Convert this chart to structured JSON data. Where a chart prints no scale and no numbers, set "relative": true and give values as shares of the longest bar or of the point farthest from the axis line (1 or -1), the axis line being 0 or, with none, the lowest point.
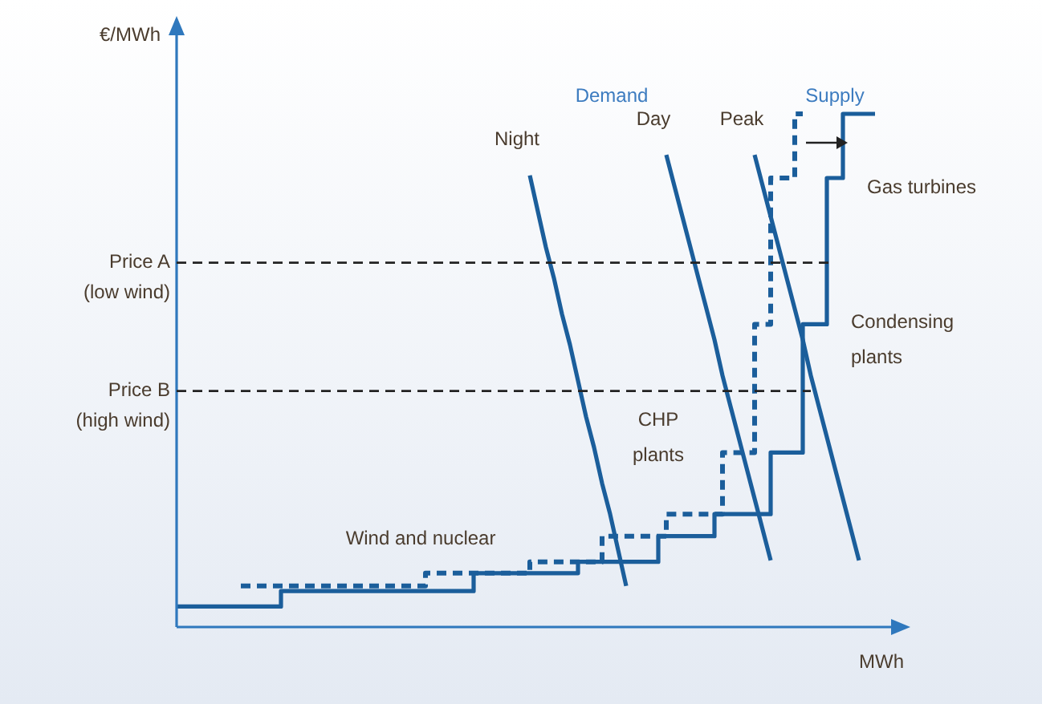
{
  "chart_data": {
    "type": "line",
    "relative": true,
    "xlabel": "MWh",
    "ylabel": "€/MWh",
    "legend": false,
    "marker": "none",
    "categories": [
      null,
      null,
      null,
      null,
      null,
      null,
      null,
      null,
      null,
      null,
      null,
      null,
      null,
      null,
      null,
      null,
      null,
      null,
      null,
      null,
      null,
      null,
      null,
      null,
      null,
      null,
      null,
      null,
      null,
      null,
      null,
      null,
      null,
      null,
      null,
      null,
      null,
      null,
      null,
      null,
      null,
      null,
      null,
      null,
      null,
      null,
      null,
      null,
      null,
      null,
      null,
      null,
      null,
      null,
      null,
      null,
      null,
      null,
      null,
      null,
      null,
      null,
      null,
      null,
      null,
      null,
      null,
      null,
      null,
      null,
      null,
      null,
      null,
      null,
      null,
      null,
      null,
      null,
      null,
      null,
      null,
      null,
      null,
      null,
      null,
      null,
      null,
      null,
      null,
      null
    ],
    "series": [
      {
        "type": "step",
        "color": "#1b5e9b",
        "line_style": "solid",
        "values": [
          0.04,
          0.04,
          0.04,
          0.04,
          0.04,
          0.04,
          0.04,
          0.04,
          0.04,
          0.04,
          0.04,
          0.04,
          0.04,
          0.04,
          0.07,
          0.07,
          0.07,
          0.07,
          0.07,
          0.07,
          0.07,
          0.07,
          0.07,
          0.07,
          0.07,
          0.07,
          0.07,
          0.07,
          0.07,
          0.07,
          0.07,
          0.07,
          0.07,
          0.07,
          0.07,
          0.07,
          0.07,
          0.07,
          0.105,
          0.105,
          0.105,
          0.105,
          0.105,
          0.105,
          0.105,
          0.105,
          0.105,
          0.105,
          0.105,
          0.105,
          0.105,
          0.127,
          0.127,
          0.127,
          0.127,
          0.127,
          0.127,
          0.127,
          0.127,
          0.127,
          0.127,
          0.177,
          0.177,
          0.177,
          0.177,
          0.177,
          0.177,
          0.177,
          0.22,
          0.22,
          0.22,
          0.22,
          0.22,
          0.22,
          0.22,
          0.34,
          0.34,
          0.34,
          0.34,
          0.59,
          0.59,
          0.59,
          0.875,
          0.875,
          1.0,
          1.0,
          1.0,
          1.0,
          null,
          null
        ]
      },
      {
        "type": "step",
        "color": "#1b5e9b",
        "line_style": "dashed",
        "values": [
          null,
          null,
          null,
          null,
          null,
          null,
          null,
          null,
          0.08,
          0.08,
          0.08,
          0.08,
          0.08,
          0.08,
          0.08,
          0.08,
          0.08,
          0.08,
          0.08,
          0.08,
          0.08,
          0.08,
          0.08,
          0.08,
          0.08,
          0.08,
          0.08,
          0.08,
          0.08,
          0.08,
          0.08,
          0.08,
          0.105,
          0.105,
          0.105,
          0.105,
          0.105,
          0.105,
          0.105,
          0.105,
          0.105,
          0.105,
          0.105,
          0.105,
          0.105,
          0.127,
          0.127,
          0.127,
          0.127,
          0.127,
          0.127,
          0.127,
          0.127,
          0.127,
          0.177,
          0.177,
          0.177,
          0.177,
          0.177,
          0.177,
          0.177,
          0.177,
          0.22,
          0.22,
          0.22,
          0.22,
          0.22,
          0.22,
          0.22,
          0.34,
          0.34,
          0.34,
          0.34,
          0.59,
          0.59,
          0.875,
          0.875,
          0.875,
          1.0,
          null,
          null,
          null,
          null,
          null,
          null,
          null,
          null,
          null,
          null,
          null
        ]
      },
      {
        "name": "Night",
        "color": "#1b5e9b",
        "line_style": "solid",
        "values": [
          null,
          null,
          null,
          null,
          null,
          null,
          null,
          null,
          null,
          null,
          null,
          null,
          null,
          null,
          null,
          null,
          null,
          null,
          null,
          null,
          null,
          null,
          null,
          null,
          null,
          null,
          null,
          null,
          null,
          null,
          null,
          null,
          null,
          null,
          null,
          null,
          null,
          null,
          null,
          null,
          null,
          null,
          null,
          null,
          0.88,
          0.81,
          0.74,
          0.68,
          0.61,
          0.55,
          0.48,
          0.41,
          0.35,
          0.28,
          0.22,
          0.15,
          0.08,
          null,
          null,
          null,
          null,
          null,
          null,
          null,
          null,
          null,
          null,
          null,
          null,
          null,
          null,
          null,
          null,
          null,
          null,
          null,
          null,
          null,
          null,
          null,
          null,
          null,
          null,
          null,
          null,
          null,
          null,
          null,
          null,
          null
        ]
      },
      {
        "name": "Day",
        "color": "#1b5e9b",
        "line_style": "solid",
        "values": [
          null,
          null,
          null,
          null,
          null,
          null,
          null,
          null,
          null,
          null,
          null,
          null,
          null,
          null,
          null,
          null,
          null,
          null,
          null,
          null,
          null,
          null,
          null,
          null,
          null,
          null,
          null,
          null,
          null,
          null,
          null,
          null,
          null,
          null,
          null,
          null,
          null,
          null,
          null,
          null,
          null,
          null,
          null,
          null,
          null,
          null,
          null,
          null,
          null,
          null,
          null,
          null,
          null,
          null,
          null,
          null,
          null,
          null,
          null,
          null,
          null,
          0.92,
          0.86,
          0.8,
          0.74,
          0.68,
          0.62,
          0.56,
          0.49,
          0.43,
          0.37,
          0.31,
          0.25,
          0.19,
          0.13,
          null,
          null,
          null,
          null,
          null,
          null,
          null,
          null,
          null,
          null,
          null,
          null,
          null,
          null,
          null
        ]
      },
      {
        "name": "Peak",
        "color": "#1b5e9b",
        "line_style": "solid",
        "values": [
          null,
          null,
          null,
          null,
          null,
          null,
          null,
          null,
          null,
          null,
          null,
          null,
          null,
          null,
          null,
          null,
          null,
          null,
          null,
          null,
          null,
          null,
          null,
          null,
          null,
          null,
          null,
          null,
          null,
          null,
          null,
          null,
          null,
          null,
          null,
          null,
          null,
          null,
          null,
          null,
          null,
          null,
          null,
          null,
          null,
          null,
          null,
          null,
          null,
          null,
          null,
          null,
          null,
          null,
          null,
          null,
          null,
          null,
          null,
          null,
          null,
          null,
          null,
          null,
          null,
          null,
          null,
          null,
          null,
          null,
          null,
          null,
          0.92,
          0.86,
          0.8,
          0.74,
          0.68,
          0.62,
          0.56,
          0.49,
          0.43,
          0.37,
          0.31,
          0.25,
          0.19,
          0.13,
          null,
          null,
          null,
          null
        ]
      }
    ],
    "ref_lines": [
      {
        "axis": "y",
        "value": 0.71,
        "label": "Price A\n(low wind)",
        "color": "#222222",
        "line_style": "dashed"
      },
      {
        "axis": "y",
        "value": 0.46,
        "label": "Price B\n(high wind)",
        "color": "#222222",
        "line_style": "dashed"
      }
    ],
    "annotations": [
      "Demand",
      "Supply",
      "Wind and nuclear",
      "CHP\nplants",
      "Condensing\nplants",
      "Gas turbines"
    ]
  }
}
